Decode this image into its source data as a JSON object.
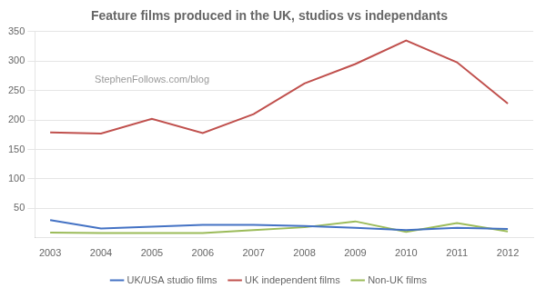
{
  "chart_data": {
    "type": "line",
    "title": "Feature films produced in the UK, studios vs independants",
    "annotations": [
      "StephenFollows.com/blog"
    ],
    "x": [
      2003,
      2004,
      2005,
      2006,
      2007,
      2008,
      2009,
      2010,
      2011,
      2012
    ],
    "series": [
      {
        "name": "UK/USA studio films",
        "color": "#4472C4",
        "values": [
          30,
          16,
          19,
          22,
          22,
          20,
          17,
          13,
          17,
          15
        ]
      },
      {
        "name": "UK independent films",
        "color": "#C0504D",
        "values": [
          179,
          177,
          202,
          178,
          210,
          262,
          295,
          335,
          298,
          228
        ]
      },
      {
        "name": "Non-UK films",
        "color": "#9BBB59",
        "values": [
          9,
          8,
          8,
          8,
          13,
          18,
          28,
          10,
          25,
          11
        ]
      }
    ],
    "xlim": [
      2002.7,
      2012.5
    ],
    "xticks": [
      2003,
      2004,
      2005,
      2006,
      2007,
      2008,
      2009,
      2010,
      2011,
      2012
    ],
    "ylim": [
      0,
      350
    ],
    "yticks": [
      50,
      100,
      150,
      200,
      250,
      300,
      350
    ],
    "grid": true,
    "legend": "bottom"
  }
}
